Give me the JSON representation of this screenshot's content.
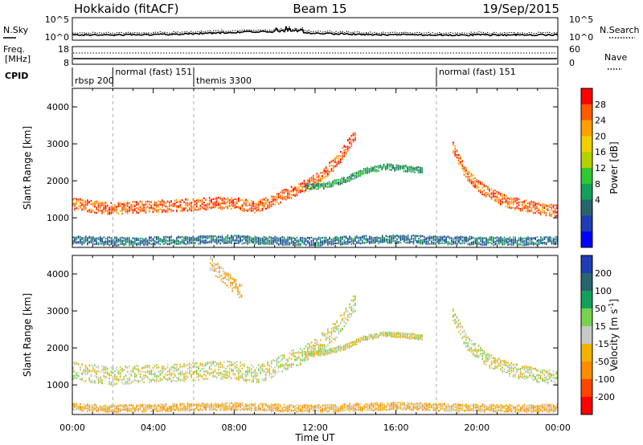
{
  "header": {
    "station": "Hokkaido (fitACF)",
    "beam": "Beam 15",
    "date": "19/Sep/2015"
  },
  "top_panels": {
    "nsky": {
      "label": "N.Sky",
      "right_label": "N.Search",
      "yticks_left": [
        "10^5",
        "10^0"
      ],
      "yticks_right": [
        "10^5",
        "10^0"
      ]
    },
    "freq": {
      "label_line1": "Freq.",
      "label_line2": "[MHz]",
      "right_label": "Nave",
      "yticks_left": [
        "18",
        "8"
      ],
      "yticks_right": [
        "60",
        "0"
      ]
    },
    "cpid": {
      "label": "CPID",
      "segments": [
        {
          "name": "rbsp 200",
          "start_hour": 0.0
        },
        {
          "name": "normal (fast) 151",
          "start_hour": 2.0
        },
        {
          "name": "themis 3300",
          "start_hour": 6.0
        },
        {
          "name": "normal (fast) 151",
          "start_hour": 18.0
        }
      ]
    }
  },
  "chart_data": [
    {
      "type": "heatmap",
      "title": "",
      "ylabel": "Slant Range [km]",
      "xlim": [
        0,
        24
      ],
      "ylim": [
        200,
        4500
      ],
      "yticks": [
        "1000",
        "2000",
        "3000",
        "4000"
      ],
      "colorbar": {
        "label": "Power [dB]",
        "ticks": [
          "28",
          "24",
          "20",
          "16",
          "12",
          "8",
          "4"
        ],
        "colors": [
          "#ff0000",
          "#ff5a00",
          "#ffa000",
          "#f0d000",
          "#b4d200",
          "#32c832",
          "#14a05a",
          "#28646e",
          "#1e3cb4",
          "#0000ff"
        ]
      },
      "bands": [
        {
          "x": [
            0,
            1,
            2,
            3,
            4,
            5,
            6,
            7,
            8,
            9,
            9.8,
            10.5,
            11.2,
            12,
            13,
            14
          ],
          "y": [
            1400,
            1320,
            1260,
            1300,
            1330,
            1350,
            1380,
            1420,
            1420,
            1300,
            1450,
            1650,
            1800,
            2050,
            2500,
            3300
          ],
          "width": 320,
          "level": 1
        },
        {
          "x": [
            18.8,
            19.5,
            20.5,
            21.5,
            22.5,
            23.2,
            24
          ],
          "y": [
            2900,
            2150,
            1700,
            1450,
            1330,
            1260,
            1200
          ],
          "width": 320,
          "level": 1
        },
        {
          "x": [
            11.5,
            12.5,
            13.5,
            14.5,
            15.5,
            16.5,
            17.3
          ],
          "y": [
            1850,
            1900,
            2050,
            2300,
            2400,
            2350,
            2300
          ],
          "width": 160,
          "level": 6
        },
        {
          "x": [
            0,
            2,
            4,
            6,
            8,
            10,
            12,
            14,
            16,
            18,
            20,
            22,
            24
          ],
          "y": [
            420,
            380,
            400,
            420,
            440,
            400,
            380,
            420,
            450,
            420,
            400,
            390,
            400
          ],
          "width": 220,
          "level": 7
        }
      ]
    },
    {
      "type": "heatmap",
      "title": "",
      "ylabel": "Slant Range [km]",
      "xlabel": "Time UT",
      "xlim": [
        0,
        24
      ],
      "ylim": [
        200,
        4500
      ],
      "xticks": [
        "00:00",
        "04:00",
        "08:00",
        "12:00",
        "16:00",
        "20:00",
        "00:00"
      ],
      "yticks": [
        "1000",
        "2000",
        "3000",
        "4000"
      ],
      "colorbar": {
        "label": "Velocity [m s",
        "label_sup": "-1",
        "label_end": "]",
        "ticks": [
          "200",
          "100",
          "50",
          "15",
          "-15",
          "-50",
          "-100",
          "-200"
        ],
        "colors": [
          "#1e3cb4",
          "#28646e",
          "#14a05a",
          "#78d250",
          "#c8c8c8",
          "#f0b400",
          "#ff8c00",
          "#ff4600",
          "#ff0000"
        ]
      },
      "bands": [
        {
          "x": [
            0,
            1,
            2,
            3,
            4,
            5,
            6,
            7,
            8,
            9,
            9.8,
            10.5,
            11.2,
            12,
            13,
            14
          ],
          "y": [
            1400,
            1320,
            1260,
            1300,
            1330,
            1350,
            1380,
            1420,
            1420,
            1300,
            1450,
            1650,
            1800,
            2050,
            2500,
            3300
          ],
          "width": 480,
          "level": 4
        },
        {
          "x": [
            18.8,
            19.5,
            20.5,
            21.5,
            22.5,
            23.2,
            24
          ],
          "y": [
            2900,
            2150,
            1700,
            1450,
            1330,
            1260,
            1200
          ],
          "width": 380,
          "level": 4
        },
        {
          "x": [
            11.5,
            12.5,
            13.5,
            14.5,
            15.5,
            16.5,
            17.3
          ],
          "y": [
            1850,
            1900,
            2050,
            2300,
            2400,
            2350,
            2300
          ],
          "width": 140,
          "level": 4
        },
        {
          "x": [
            6.8,
            7.2,
            7.6,
            8.0,
            8.4
          ],
          "y": [
            4300,
            4100,
            3900,
            3700,
            3500
          ],
          "width": 400,
          "level": 5
        },
        {
          "x": [
            0,
            2,
            4,
            6,
            8,
            10,
            12,
            14,
            16,
            18,
            20,
            22,
            24
          ],
          "y": [
            420,
            380,
            400,
            420,
            440,
            400,
            380,
            420,
            450,
            420,
            400,
            390,
            400
          ],
          "width": 200,
          "level": 5
        }
      ]
    }
  ]
}
